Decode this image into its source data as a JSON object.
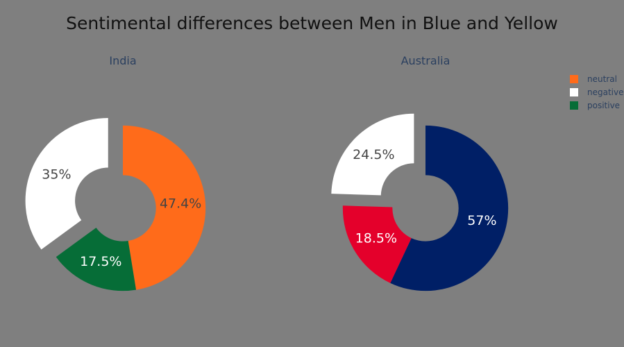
{
  "chart_data": {
    "type": "pie",
    "title": "Sentimental differences between Men in Blue and Yellow",
    "legend": {
      "placement": "top-right",
      "items": [
        {
          "label": "neutral"
        },
        {
          "label": "negative"
        },
        {
          "label": "positive"
        }
      ]
    },
    "charts": [
      {
        "title": "India",
        "hole": 0.4,
        "slices": [
          {
            "label": "neutral",
            "value": 47.4,
            "text": "47.4%",
            "color": "#ff6b1a",
            "text_color": "#444444",
            "pull": 0
          },
          {
            "label": "positive",
            "value": 17.5,
            "text": "17.5%",
            "color": "#066d37",
            "text_color": "#ffffff",
            "pull": 0
          },
          {
            "label": "negative",
            "value": 35.0,
            "text": "35%",
            "color": "#ffffff",
            "text_color": "#444444",
            "pull": 0.2
          }
        ]
      },
      {
        "title": "Australia",
        "hole": 0.4,
        "slices": [
          {
            "label": "neutral",
            "value": 57.0,
            "text": "57%",
            "color": "#001f66",
            "text_color": "#ffffff",
            "pull": 0
          },
          {
            "label": "positive",
            "value": 18.5,
            "text": "18.5%",
            "color": "#e4002b",
            "text_color": "#ffffff",
            "pull": 0
          },
          {
            "label": "negative",
            "value": 24.5,
            "text": "24.5%",
            "color": "#ffffff",
            "text_color": "#444444",
            "pull": 0.2
          }
        ]
      }
    ]
  }
}
